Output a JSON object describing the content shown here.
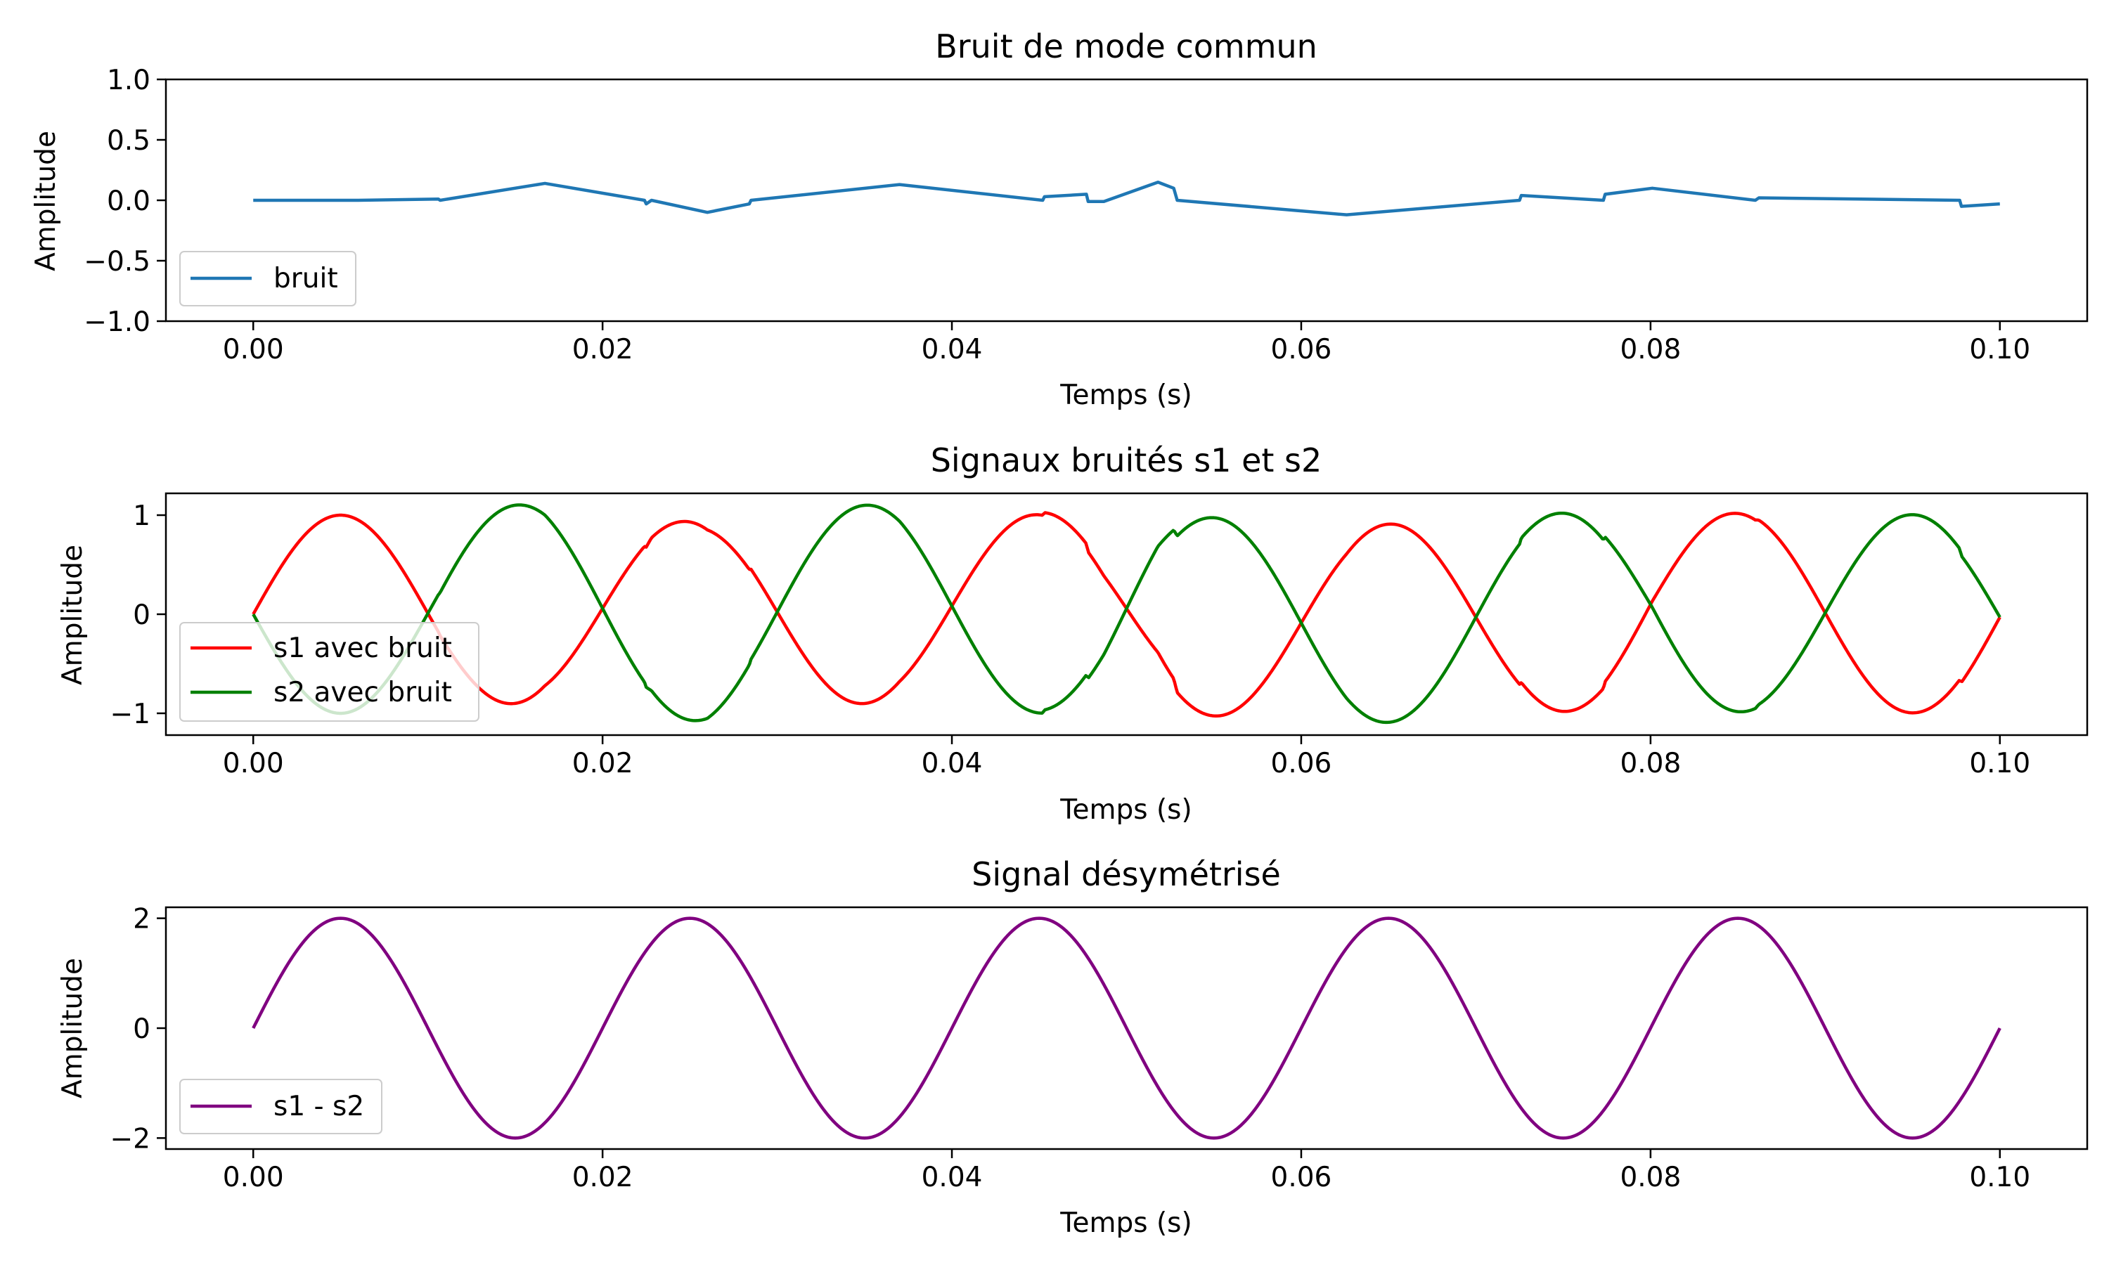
{
  "chart_data": [
    {
      "type": "line",
      "title": "Bruit de mode commun",
      "xlabel": "Temps (s)",
      "ylabel": "Amplitude",
      "xlim": [
        -0.005,
        0.105
      ],
      "ylim": [
        -1.0,
        1.0
      ],
      "xticks": [
        0.0,
        0.02,
        0.04,
        0.06,
        0.08,
        0.1
      ],
      "xtick_labels": [
        "0.00",
        "0.02",
        "0.04",
        "0.06",
        "0.08",
        "0.10"
      ],
      "yticks": [
        1.0,
        0.5,
        0.0,
        -0.5,
        -1.0
      ],
      "ytick_labels": [
        "1.0",
        "0.5",
        "0.0",
        "−0.5",
        "−1.0"
      ],
      "grid": false,
      "legend_position": "lower-left",
      "series": [
        {
          "name": "bruit",
          "color": "#1f77b4",
          "points": [
            [
              0.0,
              0.0
            ],
            [
              0.006,
              0.0
            ],
            [
              0.0106,
              0.01
            ],
            [
              0.0107,
              0.0
            ],
            [
              0.0167,
              0.14
            ],
            [
              0.0224,
              0.0
            ],
            [
              0.0225,
              -0.03
            ],
            [
              0.0228,
              0.0
            ],
            [
              0.026,
              -0.1
            ],
            [
              0.0284,
              -0.03
            ],
            [
              0.0285,
              0.0
            ],
            [
              0.037,
              0.13
            ],
            [
              0.0452,
              0.0
            ],
            [
              0.0453,
              0.03
            ],
            [
              0.0477,
              0.05
            ],
            [
              0.0478,
              -0.01
            ],
            [
              0.0487,
              -0.01
            ],
            [
              0.0518,
              0.15
            ],
            [
              0.0527,
              0.1
            ],
            [
              0.0529,
              0.0
            ],
            [
              0.0626,
              -0.12
            ],
            [
              0.0725,
              0.0
            ],
            [
              0.0726,
              0.04
            ],
            [
              0.0773,
              0.0
            ],
            [
              0.0774,
              0.05
            ],
            [
              0.0801,
              0.1
            ],
            [
              0.086,
              0.0
            ],
            [
              0.0862,
              0.02
            ],
            [
              0.0977,
              0.0
            ],
            [
              0.0978,
              -0.05
            ],
            [
              0.1,
              -0.03
            ]
          ]
        }
      ]
    },
    {
      "type": "line",
      "title": "Signaux bruités s1 et s2",
      "xlabel": "Temps (s)",
      "ylabel": "Amplitude",
      "xlim": [
        -0.005,
        0.105
      ],
      "ylim": [
        -1.22,
        1.22
      ],
      "xticks": [
        0.0,
        0.02,
        0.04,
        0.06,
        0.08,
        0.1
      ],
      "xtick_labels": [
        "0.00",
        "0.02",
        "0.04",
        "0.06",
        "0.08",
        "0.10"
      ],
      "yticks": [
        1,
        0,
        -1
      ],
      "ytick_labels": [
        "1",
        "0",
        "−1"
      ],
      "grid": false,
      "legend_position": "lower-left",
      "signal_frequency_hz": 50,
      "series": [
        {
          "name": "s1 avec bruit",
          "color": "#ff0000",
          "formula": "sin(2*pi*50*t) + bruit"
        },
        {
          "name": "s2 avec bruit",
          "color": "#008000",
          "formula": "-sin(2*pi*50*t) + bruit"
        }
      ]
    },
    {
      "type": "line",
      "title": "Signal désymétrisé",
      "xlabel": "Temps (s)",
      "ylabel": "Amplitude",
      "xlim": [
        -0.005,
        0.105
      ],
      "ylim": [
        -2.2,
        2.2
      ],
      "xticks": [
        0.0,
        0.02,
        0.04,
        0.06,
        0.08,
        0.1
      ],
      "xtick_labels": [
        "0.00",
        "0.02",
        "0.04",
        "0.06",
        "0.08",
        "0.10"
      ],
      "yticks": [
        2,
        0,
        -2
      ],
      "ytick_labels": [
        "2",
        "0",
        "−2"
      ],
      "grid": false,
      "legend_position": "lower-left",
      "signal_frequency_hz": 50,
      "series": [
        {
          "name": "s1 - s2",
          "color": "#800080",
          "formula": "2*sin(2*pi*50*t)"
        }
      ]
    }
  ]
}
